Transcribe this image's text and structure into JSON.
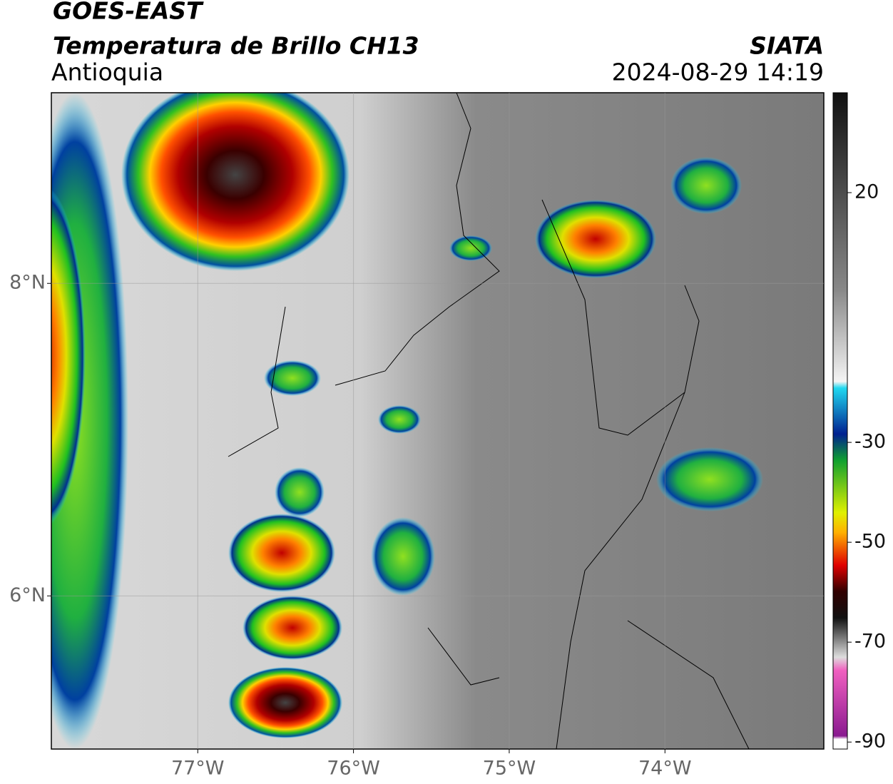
{
  "header": {
    "satellite": "GOES-EAST",
    "product": "Temperatura de Brillo CH13",
    "region": "Antioquia",
    "agency": "SIATA",
    "datetime": "2024-08-29 14:19"
  },
  "map": {
    "xlim": [
      -77.94,
      -72.98
    ],
    "ylim": [
      5.02,
      9.22
    ],
    "xticks": [
      {
        "value": -77,
        "label": "77°W"
      },
      {
        "value": -76,
        "label": "76°W"
      },
      {
        "value": -75,
        "label": "75°W"
      },
      {
        "value": -74,
        "label": "74°W"
      }
    ],
    "yticks": [
      {
        "value": 8,
        "label": "8°N"
      },
      {
        "value": 6,
        "label": "6°N"
      }
    ]
  },
  "colorbar": {
    "clim": [
      -91.4,
      40
    ],
    "ticks": [
      20,
      -30,
      -50,
      -70,
      -90
    ]
  }
}
